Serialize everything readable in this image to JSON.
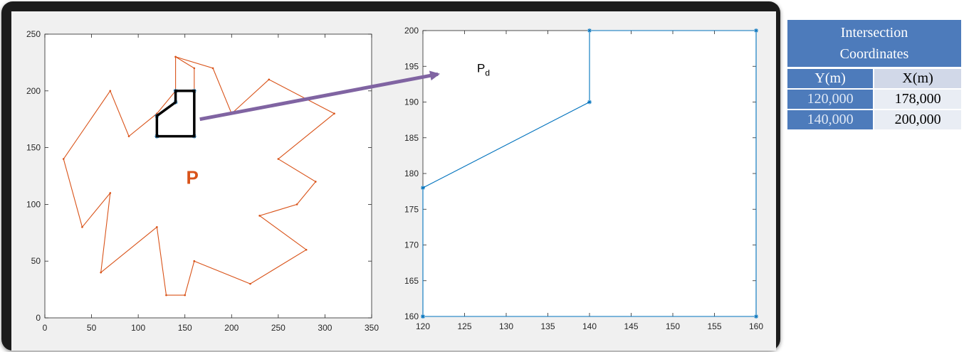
{
  "chart_data": [
    {
      "type": "line",
      "xlim": [
        0,
        350
      ],
      "ylim": [
        0,
        250
      ],
      "xticks": [
        0,
        50,
        100,
        150,
        200,
        250,
        300,
        350
      ],
      "yticks": [
        0,
        50,
        100,
        150,
        200,
        250
      ],
      "grid": false,
      "annotations": [
        "P"
      ],
      "series": [
        {
          "color": "#d95319",
          "x": [
            160,
            150,
            130,
            120,
            60,
            70,
            40,
            20,
            70,
            90,
            120,
            140,
            140,
            160,
            160,
            140,
            140,
            180,
            200,
            240,
            310,
            250,
            290,
            270,
            230,
            280,
            220,
            160
          ],
          "y": [
            50,
            20,
            20,
            80,
            40,
            110,
            80,
            140,
            200,
            160,
            180,
            200,
            230,
            220,
            200,
            200,
            230,
            220,
            180,
            210,
            180,
            140,
            120,
            100,
            90,
            60,
            30,
            50
          ]
        },
        {
          "color": "#0072bd",
          "x": [
            120,
            120,
            140,
            140,
            160,
            160,
            120
          ],
          "y": [
            160,
            178,
            190,
            200,
            200,
            160,
            160
          ]
        }
      ]
    },
    {
      "type": "line",
      "xlim": [
        120,
        160
      ],
      "ylim": [
        160,
        200
      ],
      "xticks": [
        120,
        125,
        130,
        135,
        140,
        145,
        150,
        155,
        160
      ],
      "yticks": [
        160,
        165,
        170,
        175,
        180,
        185,
        190,
        195,
        200
      ],
      "grid": false,
      "annotation": {
        "base": "P",
        "subscript": "d"
      },
      "series": [
        {
          "color": "#0072bd",
          "x": [
            120,
            120,
            140,
            140,
            160,
            160,
            120
          ],
          "y": [
            160,
            178,
            190,
            200,
            200,
            160,
            160
          ]
        }
      ]
    }
  ],
  "table": {
    "title_line1": "Intersection",
    "title_line2": "Coordinates",
    "headers": [
      "Y(m)",
      "X(m)"
    ],
    "rows": [
      [
        "120,000",
        "178,000"
      ],
      [
        "140,000",
        "200,000"
      ]
    ]
  },
  "colors": {
    "orange": "#d95319",
    "blue": "#0072bd",
    "arrow": "#8064a2",
    "table_header": "#4d7bbb"
  }
}
